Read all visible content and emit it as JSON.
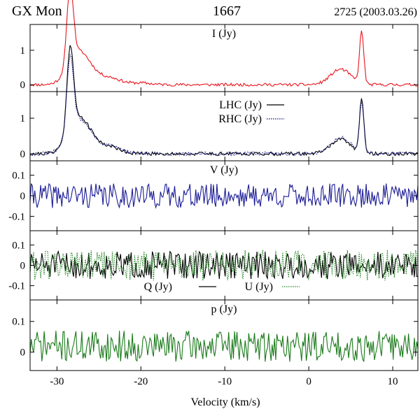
{
  "header": {
    "source": "GX Mon",
    "line": "1667",
    "epoch": "2725 (2003.03.26)"
  },
  "colors": {
    "frame": "#000000",
    "I": "#e8141c",
    "LHC": "#000000",
    "RHC": "#1a1a8c",
    "V": "#1a1a96",
    "Q": "#000000",
    "U": "#2e8b2e",
    "p": "#1a7a1a"
  },
  "chart_data": {
    "type": "line",
    "xlabel": "Velocity (km/s)",
    "xlim": [
      -33.2,
      13
    ],
    "xticks": [
      -30,
      -20,
      -10,
      0,
      10
    ],
    "xtick_labels": [
      "-30",
      "-20",
      "-10",
      "0",
      "10"
    ],
    "panels": [
      {
        "id": "I",
        "label": "I (Jy)",
        "ylim": [
          -0.2,
          1.75
        ],
        "yticks": [
          0,
          1
        ],
        "ytick_labels": [
          "0",
          "1"
        ],
        "series": [
          {
            "name": "I",
            "style": "solid",
            "color_key": "I",
            "features": [
              [
                -28.3,
                1.35
              ],
              [
                -28.6,
                1.05
              ],
              [
                -27.6,
                0.85
              ],
              [
                -26.0,
                0.28
              ],
              [
                -23.5,
                0.18
              ],
              [
                -20.0,
                0.05
              ],
              [
                3.8,
                0.45
              ],
              [
                6.3,
                1.5
              ]
            ],
            "noise": 0.025,
            "seed": 11
          }
        ]
      },
      {
        "id": "LR",
        "label": "",
        "ylim": [
          -0.2,
          1.75
        ],
        "yticks": [
          0,
          1
        ],
        "ytick_labels": [
          "0",
          "1"
        ],
        "series": [
          {
            "name": "LHC",
            "style": "solid",
            "color_key": "LHC",
            "features": [
              [
                -28.3,
                1.45
              ],
              [
                -28.6,
                1.1
              ],
              [
                -27.6,
                0.9
              ],
              [
                -26.0,
                0.3
              ],
              [
                -23.5,
                0.17
              ],
              [
                3.8,
                0.4
              ],
              [
                6.3,
                1.55
              ]
            ],
            "noise": 0.03,
            "seed": 21
          },
          {
            "name": "RHC",
            "style": "dotted",
            "color_key": "RHC",
            "features": [
              [
                -28.3,
                1.3
              ],
              [
                -28.6,
                1.0
              ],
              [
                -27.6,
                0.85
              ],
              [
                -26.0,
                0.28
              ],
              [
                -23.5,
                0.18
              ],
              [
                3.8,
                0.45
              ],
              [
                6.3,
                1.45
              ]
            ],
            "noise": 0.03,
            "seed": 31
          }
        ],
        "legend": [
          {
            "label": "LHC (Jy)",
            "style": "solid",
            "color_key": "LHC"
          },
          {
            "label": "RHC (Jy)",
            "style": "dotted",
            "color_key": "RHC"
          }
        ]
      },
      {
        "id": "V",
        "label": "V (Jy)",
        "ylim": [
          -0.17,
          0.17
        ],
        "yticks": [
          0.1,
          0,
          -0.1
        ],
        "ytick_labels": [
          "0.1",
          "0",
          "-0.1"
        ],
        "series": [
          {
            "name": "V",
            "style": "solid",
            "color_key": "V",
            "features": [],
            "noise": 0.035,
            "seed": 41
          }
        ]
      },
      {
        "id": "QU",
        "label": "",
        "ylim": [
          -0.17,
          0.17
        ],
        "yticks": [
          0.1,
          0,
          -0.1
        ],
        "ytick_labels": [
          "0.1",
          "0",
          "-0.1"
        ],
        "series": [
          {
            "name": "Q",
            "style": "solid",
            "color_key": "Q",
            "features": [],
            "noise": 0.04,
            "seed": 51
          },
          {
            "name": "U",
            "style": "dotted",
            "color_key": "U",
            "features": [],
            "noise": 0.045,
            "seed": 61
          }
        ],
        "legend": [
          {
            "label": "Q (Jy)",
            "style": "solid",
            "color_key": "Q"
          },
          {
            "label": "U (Jy)",
            "style": "dotted",
            "color_key": "U"
          }
        ]
      },
      {
        "id": "p",
        "label": "p (Jy)",
        "ylim": [
          -0.06,
          0.17
        ],
        "yticks": [
          0.1,
          0
        ],
        "ytick_labels": [
          "0.1",
          "0"
        ],
        "series": [
          {
            "name": "p",
            "style": "solid",
            "color_key": "p",
            "features": [],
            "noise": 0.03,
            "seed": 71,
            "offset": 0.02
          }
        ]
      }
    ]
  }
}
